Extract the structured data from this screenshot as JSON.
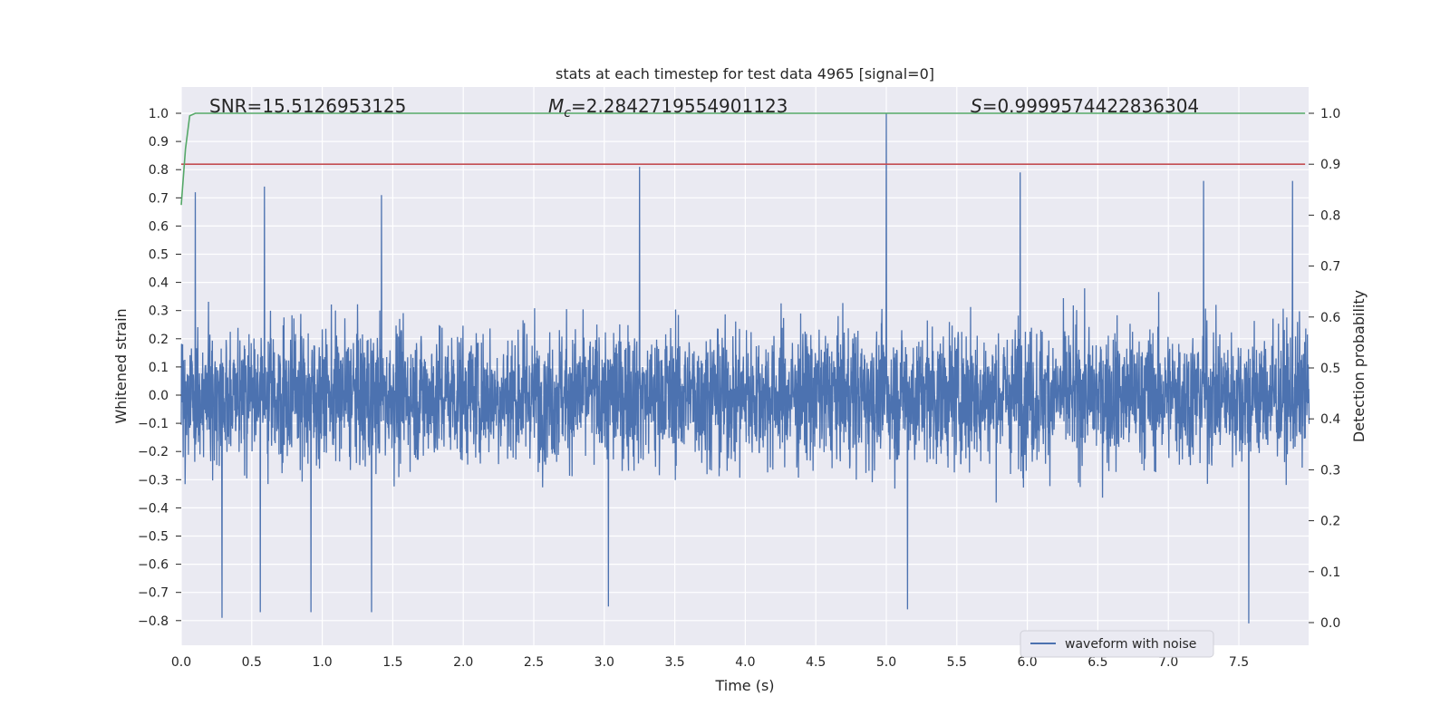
{
  "chart_data": {
    "type": "line",
    "title": "stats at each timestep for test data 4965 [signal=0]",
    "xlabel": "Time (s)",
    "ylabel": "Whitened strain",
    "y2label": "Detection probability",
    "xlim": [
      0.0,
      8.0
    ],
    "ylim": [
      -0.9,
      1.08
    ],
    "y2lim": [
      -0.05,
      1.04
    ],
    "xticks": [
      "0.0",
      "0.5",
      "1.0",
      "1.5",
      "2.0",
      "2.5",
      "3.0",
      "3.5",
      "4.0",
      "4.5",
      "5.0",
      "5.5",
      "6.0",
      "6.5",
      "7.0",
      "7.5"
    ],
    "yticks": [
      "1.0",
      "0.9",
      "0.8",
      "0.7",
      "0.6",
      "0.5",
      "0.4",
      "0.3",
      "0.2",
      "0.1",
      "0.0",
      "−0.1",
      "−0.2",
      "−0.3",
      "−0.4",
      "−0.5",
      "−0.6",
      "−0.7",
      "−0.8"
    ],
    "y2ticks": [
      "1.0",
      "0.9",
      "0.8",
      "0.7",
      "0.6",
      "0.5",
      "0.4",
      "0.3",
      "0.2",
      "0.1",
      "0.0"
    ],
    "annotations": {
      "snr_label": "SNR=",
      "snr_value": "15.5126953125",
      "mc_symbol": "M",
      "mc_subscript": "c",
      "mc_value": "=2.2842719554901123",
      "s_symbol": "S",
      "s_value": "=0.9999574422836304"
    },
    "legend": {
      "label": "waveform with noise",
      "position": "lower-center-right"
    },
    "series": [
      {
        "name": "waveform with noise",
        "axis": "left",
        "color": "#4c72b0",
        "description": "whitened noise strain sampled at ~512 Hz, envelope roughly ±0.45 with spikes up to 0.8 / -0.8 and a single spike to 1.0 near t=5.0",
        "peaks": [
          {
            "x": 0.1,
            "y": 0.72
          },
          {
            "x": 0.59,
            "y": 0.74
          },
          {
            "x": 1.42,
            "y": 0.71
          },
          {
            "x": 3.25,
            "y": 0.81
          },
          {
            "x": 5.0,
            "y": 1.0
          },
          {
            "x": 5.95,
            "y": 0.79
          },
          {
            "x": 7.25,
            "y": 0.76
          },
          {
            "x": 7.88,
            "y": 0.76
          },
          {
            "x": 0.29,
            "y": -0.79
          },
          {
            "x": 0.56,
            "y": -0.77
          },
          {
            "x": 0.92,
            "y": -0.77
          },
          {
            "x": 1.35,
            "y": -0.77
          },
          {
            "x": 3.03,
            "y": -0.75
          },
          {
            "x": 5.15,
            "y": -0.76
          },
          {
            "x": 7.57,
            "y": -0.81
          }
        ]
      },
      {
        "name": "threshold",
        "axis": "right",
        "color": "#c44e52",
        "x": [
          0.0,
          8.0
        ],
        "y": [
          0.9,
          0.9
        ]
      },
      {
        "name": "detection probability",
        "axis": "right",
        "color": "#55a868",
        "x": [
          0.0,
          0.03,
          0.06,
          0.1,
          0.2,
          8.0
        ],
        "y": [
          0.82,
          0.93,
          0.995,
          1.0,
          1.0,
          1.0
        ]
      }
    ]
  }
}
